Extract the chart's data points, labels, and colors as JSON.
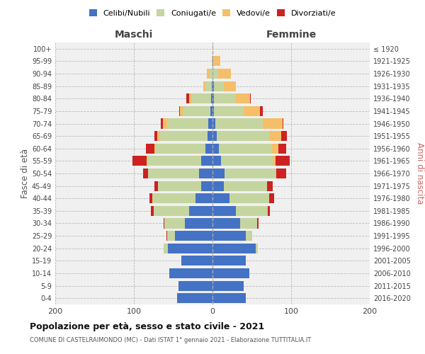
{
  "age_groups": [
    "0-4",
    "5-9",
    "10-14",
    "15-19",
    "20-24",
    "25-29",
    "30-34",
    "35-39",
    "40-44",
    "45-49",
    "50-54",
    "55-59",
    "60-64",
    "65-69",
    "70-74",
    "75-79",
    "80-84",
    "85-89",
    "90-94",
    "95-99",
    "100+"
  ],
  "birth_years": [
    "2016-2020",
    "2011-2015",
    "2006-2010",
    "2001-2005",
    "1996-2000",
    "1991-1995",
    "1986-1990",
    "1981-1985",
    "1976-1980",
    "1971-1975",
    "1966-1970",
    "1961-1965",
    "1956-1960",
    "1951-1955",
    "1946-1950",
    "1941-1945",
    "1936-1940",
    "1931-1935",
    "1926-1930",
    "1921-1925",
    "≤ 1920"
  ],
  "colors": {
    "celibi": "#4472c4",
    "coniugati": "#c5d5a0",
    "vedovi": "#f5bf6a",
    "divorziati": "#cc2222"
  },
  "males": {
    "celibi": [
      45,
      43,
      55,
      40,
      57,
      48,
      35,
      30,
      22,
      14,
      17,
      14,
      9,
      6,
      5,
      3,
      2,
      1,
      0,
      0,
      0
    ],
    "coniugati": [
      0,
      0,
      0,
      0,
      5,
      10,
      26,
      45,
      55,
      55,
      65,
      69,
      63,
      61,
      53,
      35,
      24,
      8,
      4,
      1,
      0
    ],
    "vedovi": [
      0,
      0,
      0,
      0,
      0,
      0,
      0,
      0,
      0,
      0,
      0,
      1,
      2,
      3,
      5,
      3,
      4,
      3,
      3,
      0,
      0
    ],
    "divorziati": [
      0,
      0,
      0,
      0,
      0,
      1,
      1,
      3,
      3,
      5,
      6,
      18,
      11,
      4,
      3,
      1,
      3,
      0,
      0,
      0,
      0
    ]
  },
  "females": {
    "celibi": [
      42,
      40,
      47,
      42,
      55,
      42,
      35,
      30,
      22,
      14,
      15,
      11,
      8,
      5,
      4,
      2,
      2,
      2,
      0,
      1,
      0
    ],
    "coniugati": [
      0,
      0,
      0,
      0,
      3,
      8,
      22,
      40,
      50,
      55,
      65,
      66,
      68,
      67,
      60,
      38,
      27,
      12,
      7,
      1,
      0
    ],
    "vedovi": [
      0,
      0,
      0,
      0,
      0,
      0,
      0,
      0,
      0,
      0,
      1,
      3,
      8,
      15,
      25,
      20,
      19,
      16,
      16,
      8,
      1
    ],
    "divorziati": [
      0,
      0,
      0,
      0,
      0,
      0,
      2,
      3,
      6,
      8,
      13,
      18,
      10,
      8,
      1,
      4,
      1,
      0,
      0,
      0,
      0
    ]
  },
  "xlim": 200,
  "title": "Popolazione per età, sesso e stato civile - 2021",
  "subtitle": "COMUNE DI CASTELRAIMONDO (MC) - Dati ISTAT 1° gennaio 2021 - Elaborazione TUTTITALIA.IT",
  "ylabel_left": "Fasce di età",
  "ylabel_right": "Anni di nascita",
  "xlabel_maschi": "Maschi",
  "xlabel_femmine": "Femmine",
  "bg_color": "#f0f0f0"
}
